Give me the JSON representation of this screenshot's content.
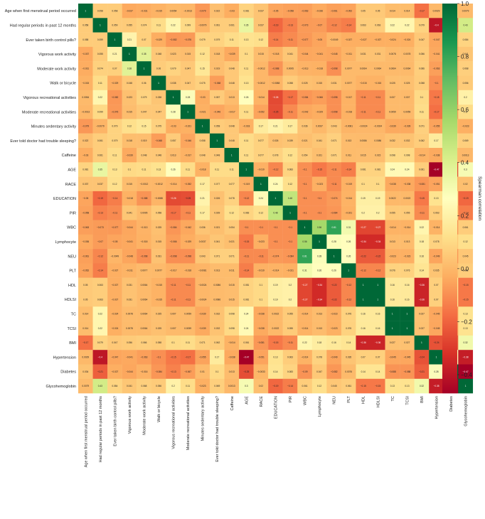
{
  "chart_data": {
    "type": "heatmap",
    "variables": [
      "Age when first menstrual period occurred",
      "Had regular periods in past 12 months",
      "Ever taken birth control pills?",
      "Vigorous work activity",
      "Moderate work activity",
      "Walk or bicycle",
      "Vigorous recreational activities",
      "Moderate recreational activities",
      "Minutes sedentary activity",
      "Ever told doctor had trouble sleeping?",
      "Caffeine",
      "AGE",
      "RACE",
      "EDUCATION",
      "PIR",
      "WBC",
      "Lymphocyte",
      "NEU",
      "PLT",
      "HDL",
      "HDLSI",
      "TC",
      "TCSI",
      "BMI",
      "Hypertension",
      "Diabetes",
      "Glycohemoglobin"
    ],
    "matrix": [
      [
        1,
        0.058,
        0.058,
        -0.037,
        -0.031,
        -0.015,
        0.0054,
        -0.0013,
        -0.079,
        0.022,
        -0.03,
        0.081,
        0.037,
        -0.05,
        -0.058,
        -0.063,
        -0.036,
        -0.061,
        -0.052,
        0.05,
        0.05,
        0.014,
        0.014,
        -0.17,
        0.0029,
        0.034,
        0.0079
      ],
      [
        0.058,
        1,
        0.059,
        0.055,
        0.074,
        0.11,
        0.22,
        0.099,
        -0.0079,
        0.061,
        0.061,
        0.35,
        0.037,
        -0.19,
        -0.13,
        -0.073,
        -0.07,
        -0.12,
        -0.14,
        0.063,
        0.063,
        0.22,
        0.22,
        0.079,
        -0.4,
        -0.21,
        0.43
      ],
      [
        0.058,
        0.059,
        1,
        0.21,
        0.07,
        -0.029,
        -0.082,
        -0.076,
        0.079,
        0.079,
        0.11,
        0.13,
        0.12,
        -0.14,
        -0.11,
        -0.077,
        -0.05,
        -0.0049,
        -0.027,
        -0.027,
        -0.027,
        -0.024,
        -0.024,
        0.047,
        -0.047,
        -0.027,
        0.084
      ],
      [
        -0.037,
        0.055,
        0.21,
        1,
        0.38,
        0.048,
        0.023,
        0.015,
        0.12,
        0.018,
        -0.039,
        0.1,
        0.015,
        -0.018,
        0.041,
        -0.044,
        -0.041,
        -0.048,
        -0.011,
        0.031,
        0.031,
        0.0078,
        0.0078,
        0.056,
        -0.041,
        -0.044,
        0.041
      ],
      [
        -0.031,
        0.074,
        0.07,
        0.38,
        1,
        0.06,
        0.079,
        0.047,
        0.15,
        0.019,
        0.048,
        0.11,
        -0.0012,
        -0.088,
        0.0095,
        -0.013,
        -0.018,
        -0.098,
        0.0077,
        0.0064,
        0.0064,
        0.0064,
        0.0064,
        0.066,
        -0.063,
        -0.016,
        0.068
      ],
      [
        -0.015,
        0.11,
        -0.029,
        0.048,
        0.06,
        1,
        0.038,
        0.047,
        0.075,
        -0.068,
        0.048,
        0.13,
        -0.0012,
        -0.0088,
        0.058,
        0.025,
        0.015,
        0.031,
        0.0077,
        -0.015,
        -0.015,
        0.025,
        0.025,
        0.058,
        -0.1,
        -0.084,
        0.056
      ],
      [
        0.0054,
        0.22,
        -0.082,
        0.023,
        0.079,
        0.038,
        1,
        0.28,
        -0.03,
        0.057,
        0.013,
        0.26,
        -0.014,
        -0.26,
        -0.17,
        -0.084,
        -0.066,
        -0.098,
        -0.017,
        -0.11,
        -0.11,
        0.007,
        0.007,
        0.1,
        -0.15,
        -0.13,
        0.2
      ],
      [
        -0.0013,
        0.099,
        -0.076,
        0.015,
        0.047,
        0.047,
        0.28,
        1,
        -0.021,
        -0.046,
        -0.017,
        0.11,
        -0.052,
        -0.25,
        -0.11,
        -0.042,
        -0.029,
        -0.098,
        -0.018,
        -0.11,
        -0.11,
        0.0059,
        0.0059,
        0.11,
        -0.17,
        -0.067,
        0.11
      ],
      [
        -0.079,
        -0.0079,
        0.079,
        0.12,
        0.15,
        0.075,
        -0.03,
        -0.021,
        1,
        0.058,
        0.048,
        -0.018,
        0.17,
        0.21,
        0.17,
        0.036,
        0.0037,
        0.043,
        -0.0081,
        -0.0024,
        -0.0024,
        -0.039,
        -0.039,
        0.071,
        -0.055,
        0.01,
        -0.023
      ],
      [
        0.022,
        0.061,
        0.079,
        0.018,
        0.019,
        -0.068,
        0.057,
        -0.046,
        0.058,
        1,
        0.048,
        0.11,
        0.077,
        0.026,
        0.039,
        0.021,
        0.041,
        0.071,
        0.013,
        0.0086,
        0.0086,
        0.032,
        0.032,
        0.062,
        0.17,
        0.1,
        0.069
      ],
      [
        -0.03,
        0.061,
        0.11,
        -0.039,
        0.048,
        0.048,
        0.013,
        -0.017,
        0.048,
        0.048,
        1,
        0.11,
        0.077,
        0.078,
        0.12,
        0.054,
        0.021,
        0.071,
        0.011,
        0.015,
        0.015,
        0.098,
        0.098,
        -0.014,
        -0.038,
        0.013,
        0.0013
      ],
      [
        0.081,
        0.35,
        0.13,
        0.1,
        0.11,
        0.13,
        0.26,
        0.11,
        -0.018,
        0.11,
        0.11,
        1,
        -0.019,
        -0.12,
        0.083,
        -0.1,
        -0.15,
        -0.11,
        -0.14,
        0.081,
        0.081,
        0.24,
        0.24,
        0.061,
        -0.47,
        -0.25,
        0.3
      ],
      [
        0.037,
        0.037,
        0.12,
        0.015,
        -0.0012,
        -0.0012,
        -0.014,
        -0.052,
        0.17,
        0.077,
        0.077,
        -0.019,
        1,
        0.24,
        0.12,
        -0.1,
        -0.023,
        -0.11,
        -0.019,
        0.1,
        0.1,
        -0.038,
        -0.038,
        -0.081,
        -0.051,
        -0.0033,
        0.02
      ],
      [
        -0.05,
        -0.19,
        -0.14,
        -0.018,
        -0.088,
        -0.0088,
        -0.26,
        -0.25,
        0.21,
        0.026,
        0.078,
        -0.12,
        0.24,
        1,
        0.48,
        -0.1,
        -0.1,
        -0.074,
        -0.014,
        0.19,
        0.19,
        0.0022,
        0.0022,
        -0.15,
        0.13,
        0.14,
        -0.19
      ],
      [
        -0.058,
        -0.13,
        -0.11,
        0.041,
        0.0095,
        0.058,
        -0.17,
        -0.11,
        0.17,
        0.039,
        0.12,
        0.083,
        0.12,
        0.48,
        1,
        -0.1,
        -0.1,
        -0.084,
        -0.021,
        0.2,
        0.2,
        0.055,
        0.055,
        -0.11,
        0.063,
        0.083,
        -0.14
      ],
      [
        -0.063,
        -0.073,
        -0.077,
        -0.044,
        -0.013,
        0.025,
        -0.084,
        -0.042,
        0.036,
        0.021,
        0.054,
        -0.1,
        -0.1,
        -0.1,
        -0.1,
        1,
        0.56,
        0.81,
        0.31,
        -0.27,
        -0.27,
        -0.014,
        -0.014,
        0.22,
        -0.014,
        -0.09,
        0.061
      ],
      [
        -0.036,
        -0.07,
        -0.05,
        -0.041,
        -0.018,
        0.015,
        -0.066,
        -0.029,
        0.0037,
        0.041,
        0.021,
        -0.15,
        -0.023,
        -0.1,
        -0.1,
        0.56,
        1,
        0.28,
        0.26,
        -0.34,
        -0.34,
        0.013,
        0.013,
        0.18,
        0.078,
        0.047,
        0.12
      ],
      [
        -0.061,
        -0.12,
        -0.0049,
        -0.048,
        -0.098,
        0.031,
        -0.098,
        -0.098,
        0.043,
        0.071,
        0.071,
        -0.11,
        -0.11,
        -0.074,
        -0.084,
        0.81,
        0.28,
        1,
        0.26,
        -0.22,
        -0.22,
        -0.023,
        -0.023,
        0.16,
        -0.049,
        -0.082,
        0.045
      ],
      [
        -0.052,
        -0.14,
        -0.027,
        -0.011,
        0.0077,
        0.0077,
        -0.017,
        -0.018,
        -0.0081,
        0.013,
        0.011,
        -0.14,
        -0.019,
        -0.014,
        -0.021,
        0.31,
        0.26,
        0.26,
        1,
        -0.12,
        -0.12,
        0.076,
        0.076,
        0.14,
        0.035,
        0.0076,
        0.061
      ],
      [
        0.05,
        0.063,
        -0.027,
        0.031,
        0.0064,
        -0.015,
        -0.11,
        -0.11,
        -0.0024,
        0.0086,
        0.015,
        0.081,
        0.1,
        0.19,
        0.2,
        -0.27,
        -0.34,
        -0.22,
        -0.12,
        1,
        1,
        0.16,
        0.16,
        -0.36,
        0.07,
        0.14,
        -0.15
      ],
      [
        0.05,
        0.063,
        -0.027,
        0.031,
        0.0064,
        -0.015,
        -0.11,
        -0.11,
        -0.0024,
        0.0086,
        0.015,
        0.081,
        0.1,
        0.19,
        0.2,
        -0.27,
        -0.34,
        -0.22,
        -0.12,
        1,
        1,
        0.16,
        0.16,
        -0.36,
        0.07,
        0.14,
        -0.15
      ],
      [
        0.014,
        0.22,
        -0.024,
        0.0078,
        0.0064,
        0.025,
        0.007,
        0.0059,
        -0.039,
        0.032,
        0.098,
        0.24,
        -0.038,
        0.0022,
        0.055,
        -0.014,
        0.013,
        -0.023,
        0.076,
        0.16,
        0.16,
        1,
        1,
        0.027,
        -0.045,
        -0.088,
        0.13
      ],
      [
        0.014,
        0.22,
        -0.024,
        0.0078,
        0.0064,
        0.025,
        0.007,
        0.0059,
        -0.039,
        0.032,
        0.098,
        0.24,
        -0.038,
        0.0022,
        0.055,
        -0.014,
        0.013,
        -0.023,
        0.076,
        0.16,
        0.16,
        1,
        1,
        0.027,
        -0.045,
        -0.088,
        0.13
      ],
      [
        -0.17,
        0.079,
        0.047,
        0.056,
        0.066,
        0.058,
        0.1,
        0.11,
        0.071,
        0.062,
        -0.014,
        0.061,
        -0.081,
        -0.15,
        -0.11,
        0.22,
        0.18,
        0.16,
        0.14,
        -0.36,
        -0.36,
        0.027,
        0.027,
        1,
        -0.24,
        -0.21,
        0.32
      ],
      [
        0.0029,
        -0.4,
        -0.047,
        -0.041,
        -0.063,
        -0.1,
        -0.15,
        -0.17,
        -0.055,
        0.17,
        -0.038,
        -0.47,
        -0.051,
        0.13,
        0.063,
        -0.014,
        0.078,
        -0.049,
        0.035,
        0.07,
        0.07,
        -0.045,
        -0.045,
        -0.24,
        1,
        0.28,
        -0.38
      ],
      [
        0.034,
        -0.21,
        -0.027,
        -0.044,
        -0.016,
        -0.084,
        -0.13,
        -0.067,
        0.01,
        0.1,
        0.013,
        -0.25,
        -0.0033,
        0.14,
        0.083,
        -0.09,
        0.047,
        -0.082,
        0.0076,
        0.14,
        0.14,
        -0.088,
        -0.088,
        -0.21,
        0.28,
        1,
        -0.47
      ],
      [
        0.0079,
        0.43,
        0.084,
        0.041,
        0.068,
        0.056,
        0.2,
        0.11,
        -0.023,
        0.069,
        0.0013,
        0.3,
        0.02,
        -0.19,
        -0.14,
        0.061,
        0.12,
        0.045,
        0.061,
        -0.15,
        -0.15,
        0.13,
        0.13,
        0.32,
        -0.38,
        -0.47,
        1
      ]
    ],
    "colorbar": {
      "label": "Spearman correlation",
      "ticks": [
        "1.0",
        "0.8",
        "0.6",
        "0.4",
        "0.2",
        "0.0",
        "−0.2",
        "−0.4"
      ],
      "range": [
        -0.47,
        1.0
      ]
    },
    "colormap": [
      "#a50026",
      "#d73027",
      "#f46d43",
      "#fdae61",
      "#fee08b",
      "#ffffbf",
      "#d9ef8b",
      "#a6d96a",
      "#66bd63",
      "#1a9850",
      "#006837"
    ],
    "grid": false
  }
}
